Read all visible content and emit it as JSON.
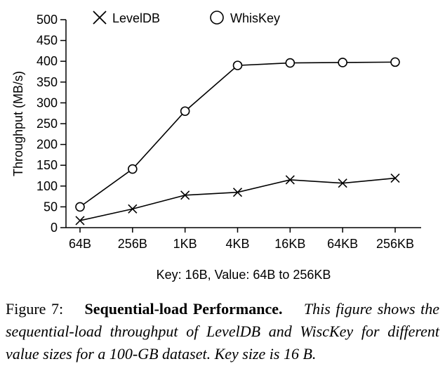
{
  "chart_data": {
    "type": "line",
    "xlabel": "Key: 16B, Value: 64B to 256KB",
    "ylabel": "Throughput (MB/s)",
    "categories": [
      "64B",
      "256B",
      "1KB",
      "4KB",
      "16KB",
      "64KB",
      "256KB"
    ],
    "ylim": [
      0,
      500
    ],
    "yticks": [
      0,
      50,
      100,
      150,
      200,
      250,
      300,
      350,
      400,
      450,
      500
    ],
    "legend_position": "top",
    "grid": false,
    "series": [
      {
        "name": "LevelDB",
        "marker": "x",
        "values": [
          17,
          45,
          78,
          85,
          115,
          107,
          119
        ]
      },
      {
        "name": "WhisKey",
        "marker": "circle",
        "values": [
          50,
          141,
          280,
          390,
          396,
          397,
          398
        ]
      }
    ]
  },
  "caption": {
    "label": "Figure 7:",
    "title": "Sequential-load Performance.",
    "text": "This figure shows the sequential-load throughput of LevelDB and WiscKey for different value sizes for a 100-GB dataset. Key size is 16 B."
  }
}
